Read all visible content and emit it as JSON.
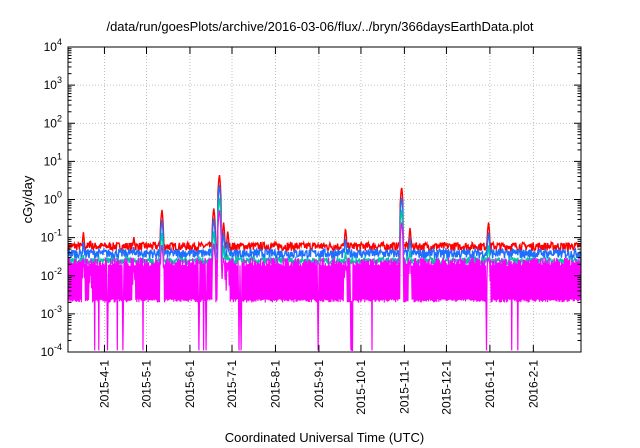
{
  "chart_data": {
    "type": "line",
    "title": "/data/run/goesPlots/archive/2016-03-06/flux/../bryn/366daysEarthData.plot",
    "xlabel": "Coordinated Universal Time (UTC)",
    "ylabel": "cGy/day",
    "y_scale": "log",
    "ylim": [
      0.0001,
      10000
    ],
    "y_ticks": [
      {
        "base": "10",
        "exp": "-4",
        "value": 0.0001
      },
      {
        "base": "10",
        "exp": "-3",
        "value": 0.001
      },
      {
        "base": "10",
        "exp": "-2",
        "value": 0.01
      },
      {
        "base": "10",
        "exp": "-1",
        "value": 0.1
      },
      {
        "base": "10",
        "exp": "0",
        "value": 1
      },
      {
        "base": "10",
        "exp": "1",
        "value": 10
      },
      {
        "base": "10",
        "exp": "2",
        "value": 100
      },
      {
        "base": "10",
        "exp": "3",
        "value": 1000
      },
      {
        "base": "10",
        "exp": "4",
        "value": 10000
      }
    ],
    "xlim": [
      "2015-03-06",
      "2016-03-06"
    ],
    "x_ticks": [
      "2015-4-1",
      "2015-5-1",
      "2015-6-1",
      "2015-7-1",
      "2015-8-1",
      "2015-9-1",
      "2015-10-1",
      "2015-11-1",
      "2015-12-1",
      "2016-1-1",
      "2016-2-1"
    ],
    "x_tick_dates": [
      "2015-04-01",
      "2015-05-01",
      "2015-06-01",
      "2015-07-01",
      "2015-08-01",
      "2015-09-01",
      "2015-10-01",
      "2015-11-01",
      "2015-12-01",
      "2016-01-01",
      "2016-02-01"
    ],
    "grid": true,
    "series": [
      {
        "color": "#ff0000",
        "baseline": 0.055,
        "noise_hi": 0.075,
        "noise_lo": 0.045
      },
      {
        "color": "#1f6fff",
        "baseline": 0.036,
        "noise_hi": 0.05,
        "noise_lo": 0.028
      },
      {
        "color": "#00c8a0",
        "baseline": 0.025,
        "noise_hi": 0.03,
        "noise_lo": 0.02
      },
      {
        "color": "#ff00ff",
        "baseline": 0.01,
        "noise_hi": 0.03,
        "noise_lo": 0.0022
      }
    ],
    "spikes": [
      {
        "date": "2015-03-17",
        "peak": 0.14
      },
      {
        "date": "2015-03-22",
        "peak": 0.09
      },
      {
        "date": "2015-04-22",
        "peak": 0.11
      },
      {
        "date": "2015-05-12",
        "peak": 0.55
      },
      {
        "date": "2015-06-18",
        "peak": 0.6
      },
      {
        "date": "2015-06-22",
        "peak": 4.6
      },
      {
        "date": "2015-06-25",
        "peak": 0.25
      },
      {
        "date": "2015-06-28",
        "peak": 0.15
      },
      {
        "date": "2015-09-20",
        "peak": 0.18
      },
      {
        "date": "2015-10-30",
        "peak": 2.2
      },
      {
        "date": "2015-11-05",
        "peak": 0.18
      },
      {
        "date": "2015-12-31",
        "peak": 0.26
      }
    ]
  }
}
